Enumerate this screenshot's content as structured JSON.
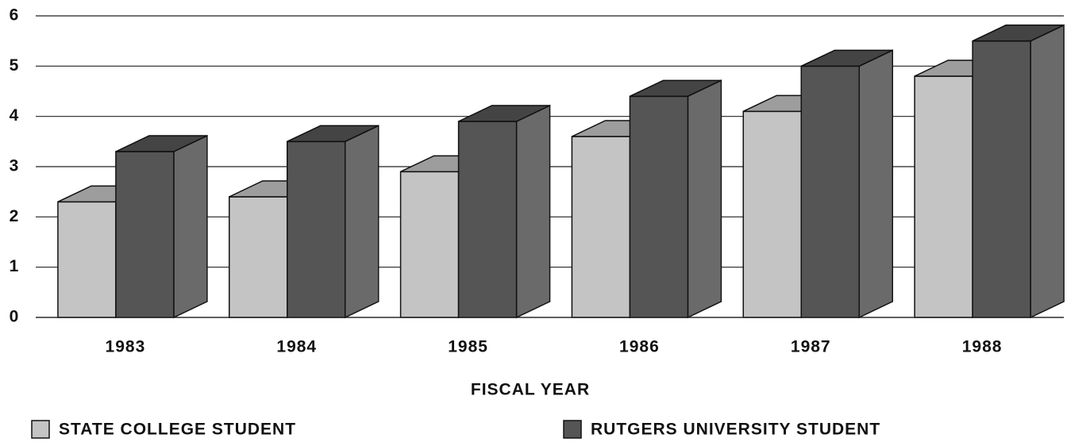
{
  "chart_data": {
    "type": "bar3d",
    "xlabel": "FISCAL YEAR",
    "categories": [
      "1983",
      "1984",
      "1985",
      "1986",
      "1987",
      "1988"
    ],
    "series": [
      {
        "name": "STATE COLLEGE STUDENT",
        "color": "#c4c4c4",
        "values": [
          2.3,
          2.4,
          2.9,
          3.6,
          4.1,
          4.8
        ]
      },
      {
        "name": "RUTGERS UNIVERSITY STUDENT",
        "color": "#555555",
        "values": [
          3.3,
          3.5,
          3.9,
          4.4,
          5.0,
          5.5
        ]
      }
    ],
    "ylim": [
      0,
      6
    ],
    "yticks": [
      0,
      1,
      2,
      3,
      4,
      5,
      6
    ],
    "grid": true
  }
}
